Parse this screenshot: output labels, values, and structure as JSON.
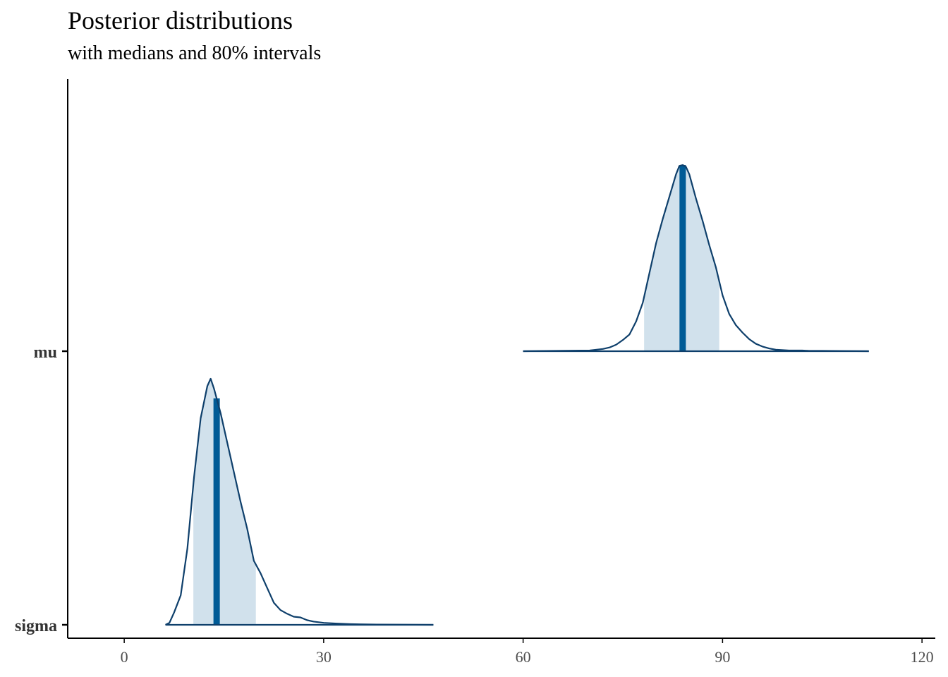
{
  "chart_data": {
    "type": "area",
    "title": "Posterior distributions",
    "subtitle": "with medians and 80% intervals",
    "xlabel": "",
    "ylabel": "",
    "xlim": [
      -8.5,
      122
    ],
    "x_ticks": [
      0,
      30,
      60,
      90,
      120
    ],
    "grid": false,
    "legend": "none",
    "colors": {
      "outline": "#0e3f6b",
      "interval_fill": "#d1e1ec",
      "median": "#005b96",
      "axis": "#000000",
      "tick_label": "#4d4d4d",
      "category_label": "#333333"
    },
    "series": [
      {
        "name": "mu",
        "median": 84,
        "interval_80": [
          78.2,
          89.5
        ],
        "density": [
          [
            60,
            0.0
          ],
          [
            70,
            0.004
          ],
          [
            72,
            0.012
          ],
          [
            73,
            0.02
          ],
          [
            74,
            0.035
          ],
          [
            75,
            0.06
          ],
          [
            76,
            0.09
          ],
          [
            77,
            0.16
          ],
          [
            78,
            0.26
          ],
          [
            79,
            0.42
          ],
          [
            80,
            0.58
          ],
          [
            81,
            0.71
          ],
          [
            82,
            0.83
          ],
          [
            83,
            0.95
          ],
          [
            83.5,
            0.995
          ],
          [
            84,
            1.0
          ],
          [
            84.5,
            0.99
          ],
          [
            85,
            0.95
          ],
          [
            86,
            0.82
          ],
          [
            87,
            0.7
          ],
          [
            88,
            0.57
          ],
          [
            89,
            0.45
          ],
          [
            90,
            0.3
          ],
          [
            91,
            0.2
          ],
          [
            92,
            0.14
          ],
          [
            93,
            0.1
          ],
          [
            94,
            0.065
          ],
          [
            95,
            0.04
          ],
          [
            96,
            0.025
          ],
          [
            97,
            0.015
          ],
          [
            98,
            0.008
          ],
          [
            100,
            0.004
          ],
          [
            102,
            0.004
          ],
          [
            103,
            0.002
          ],
          [
            105,
            0.002
          ],
          [
            108,
            0.001
          ],
          [
            112,
            0.0
          ]
        ]
      },
      {
        "name": "sigma",
        "median": 13.9,
        "interval_80": [
          10.4,
          19.8
        ],
        "density": [
          [
            6.2,
            0.0
          ],
          [
            6.8,
            0.008
          ],
          [
            7.5,
            0.05
          ],
          [
            8.5,
            0.12
          ],
          [
            9.5,
            0.31
          ],
          [
            10.5,
            0.6
          ],
          [
            11.5,
            0.84
          ],
          [
            12.5,
            0.97
          ],
          [
            13.0,
            1.0
          ],
          [
            13.5,
            0.96
          ],
          [
            14.5,
            0.86
          ],
          [
            15.5,
            0.74
          ],
          [
            16.5,
            0.62
          ],
          [
            17.5,
            0.5
          ],
          [
            18.5,
            0.39
          ],
          [
            19.5,
            0.26
          ],
          [
            20.5,
            0.21
          ],
          [
            21.5,
            0.15
          ],
          [
            22.5,
            0.09
          ],
          [
            23.5,
            0.06
          ],
          [
            24.5,
            0.045
          ],
          [
            25.5,
            0.033
          ],
          [
            26.5,
            0.03
          ],
          [
            27.5,
            0.019
          ],
          [
            28.5,
            0.013
          ],
          [
            30,
            0.008
          ],
          [
            32,
            0.005
          ],
          [
            34,
            0.003
          ],
          [
            38,
            0.001
          ],
          [
            46.5,
            0.0
          ]
        ]
      }
    ]
  }
}
